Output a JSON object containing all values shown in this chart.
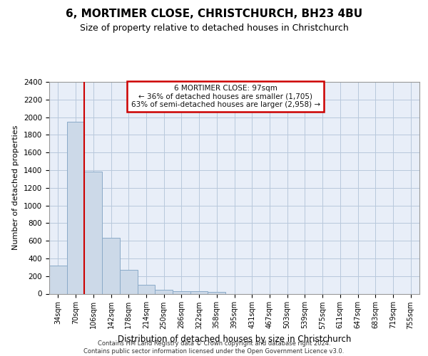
{
  "title": "6, MORTIMER CLOSE, CHRISTCHURCH, BH23 4BU",
  "subtitle": "Size of property relative to detached houses in Christchurch",
  "xlabel": "Distribution of detached houses by size in Christchurch",
  "ylabel": "Number of detached properties",
  "bar_color": "#ccd9e8",
  "bar_edge_color": "#8aaac8",
  "grid_color": "#b8c8dc",
  "background_color": "#e8eef8",
  "fig_background": "#ffffff",
  "categories": [
    "34sqm",
    "70sqm",
    "106sqm",
    "142sqm",
    "178sqm",
    "214sqm",
    "250sqm",
    "286sqm",
    "322sqm",
    "358sqm",
    "395sqm",
    "431sqm",
    "467sqm",
    "503sqm",
    "539sqm",
    "575sqm",
    "611sqm",
    "647sqm",
    "683sqm",
    "719sqm",
    "755sqm"
  ],
  "values": [
    315,
    1950,
    1380,
    630,
    270,
    100,
    48,
    32,
    28,
    20,
    0,
    0,
    0,
    0,
    0,
    0,
    0,
    0,
    0,
    0,
    0
  ],
  "ylim": [
    0,
    2400
  ],
  "yticks": [
    0,
    200,
    400,
    600,
    800,
    1000,
    1200,
    1400,
    1600,
    1800,
    2000,
    2200,
    2400
  ],
  "property_line_x": 1.5,
  "annotation_title": "6 MORTIMER CLOSE: 97sqm",
  "annotation_line1": "← 36% of detached houses are smaller (1,705)",
  "annotation_line2": "63% of semi-detached houses are larger (2,958) →",
  "annotation_color": "#cc0000",
  "footer_line1": "Contains HM Land Registry data © Crown copyright and database right 2024.",
  "footer_line2": "Contains public sector information licensed under the Open Government Licence v3.0."
}
